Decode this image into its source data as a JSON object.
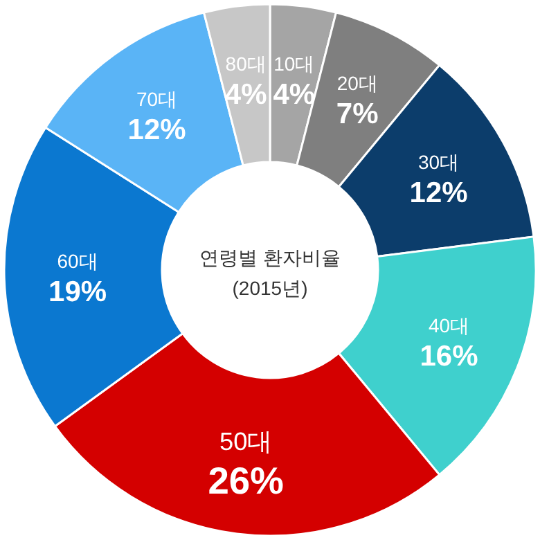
{
  "chart_data": {
    "type": "donut",
    "title": "연령별 환자비율",
    "subtitle": "(2015년)",
    "categories": [
      "10대",
      "20대",
      "30대",
      "40대",
      "50대",
      "60대",
      "70대",
      "80대"
    ],
    "values": [
      4,
      7,
      12,
      16,
      26,
      19,
      12,
      4
    ],
    "value_labels": [
      "4%",
      "7%",
      "12%",
      "16%",
      "26%",
      "19%",
      "12%",
      "4%"
    ],
    "colors": [
      "#a5a5a5",
      "#7f7f7f",
      "#0c3d6b",
      "#3fd0cd",
      "#d40000",
      "#0b78d0",
      "#5ab4f6",
      "#c7c7c7"
    ]
  }
}
